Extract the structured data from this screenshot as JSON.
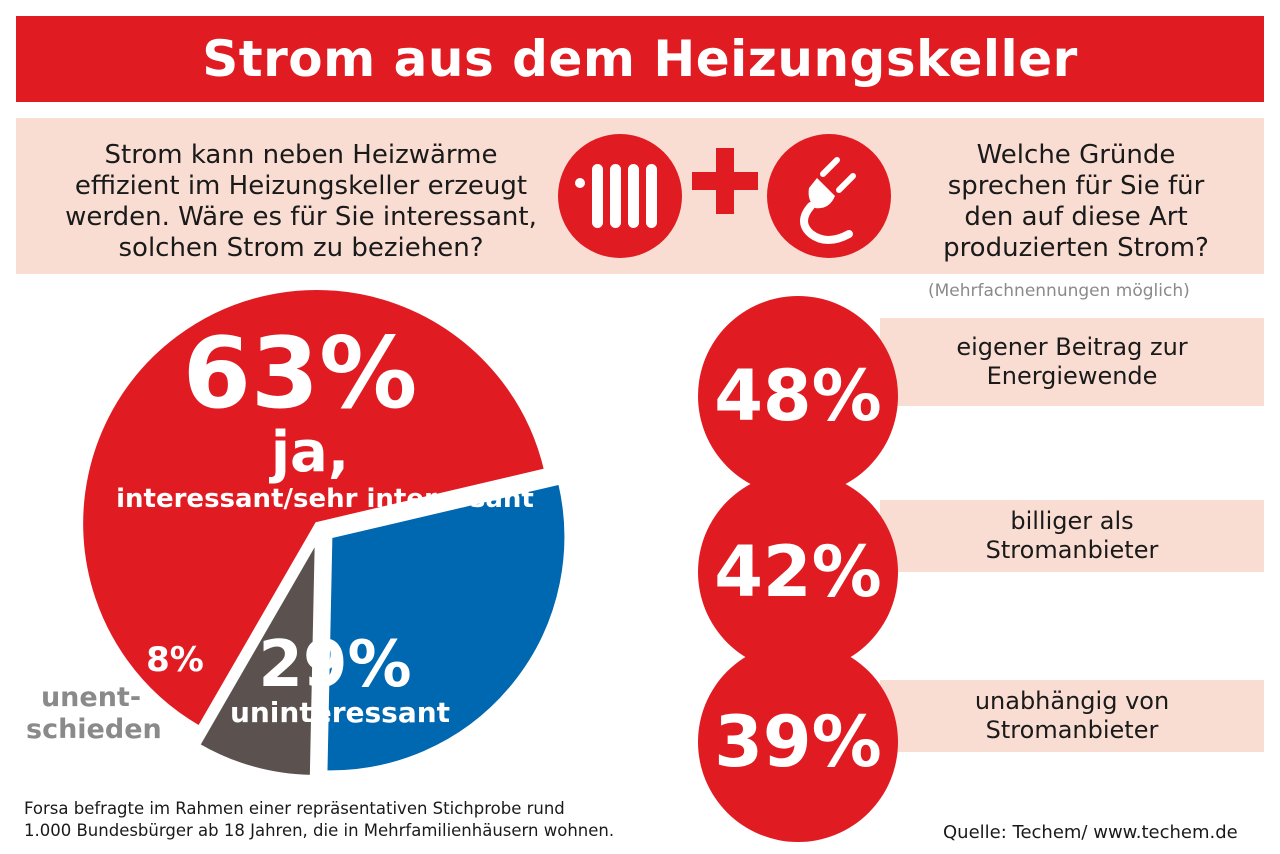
{
  "header": {
    "title": "Strom aus dem Heizungskeller"
  },
  "questions": {
    "left": "Strom kann neben Heizwärme effizient im Heizungskeller erzeugt werden. Wäre es für Sie interessant, solchen Strom zu beziehen?",
    "right": "Welche Gründe sprechen für Sie für den auf diese Art produzierten Strom?",
    "note": "(Mehrfachnennungen möglich)"
  },
  "colors": {
    "red": "#e11b22",
    "blue": "#0067b1",
    "gray": "#5b5250",
    "band": "#f9ddd2"
  },
  "icons": {
    "left": "radiator-icon",
    "right": "power-plug-icon"
  },
  "chart_data": [
    {
      "type": "pie",
      "title": "Strom kann neben Heizwärme effizient im Heizungskeller erzeugt werden. Wäre es für Sie interessant, solchen Strom zu beziehen?",
      "labels": [
        "ja, interessant/sehr interessant",
        "uninteressant",
        "unentschieden"
      ],
      "values": [
        63,
        29,
        8
      ],
      "unit": "%",
      "display": {
        "yes_value": "63%",
        "yes_label_1": "ja,",
        "yes_label_2": "interessant/sehr interessant",
        "no_value": "29%",
        "no_label": "uninteressant",
        "undecided_value": "8%",
        "undecided_label_1": "unent-",
        "undecided_label_2": "schieden"
      }
    },
    {
      "type": "bar",
      "title": "Welche Gründe sprechen für Sie für den auf diese Art produzierten Strom?",
      "note": "(Mehrfachnennungen möglich)",
      "unit": "%",
      "items": [
        {
          "value": 48,
          "value_text": "48%",
          "label": "eigener Beitrag zur Energiewende"
        },
        {
          "value": 42,
          "value_text": "42%",
          "label": "billiger als Stromanbieter"
        },
        {
          "value": 39,
          "value_text": "39%",
          "label": "unabhängig von Stromanbieter"
        }
      ]
    }
  ],
  "footer": {
    "survey_line1": "Forsa befragte im Rahmen einer repräsentativen Stichprobe rund",
    "survey_line2": "1.000 Bundesbürger ab 18 Jahren, die in Mehrfamilienhäusern wohnen.",
    "source": "Quelle: Techem/ www.techem.de"
  }
}
